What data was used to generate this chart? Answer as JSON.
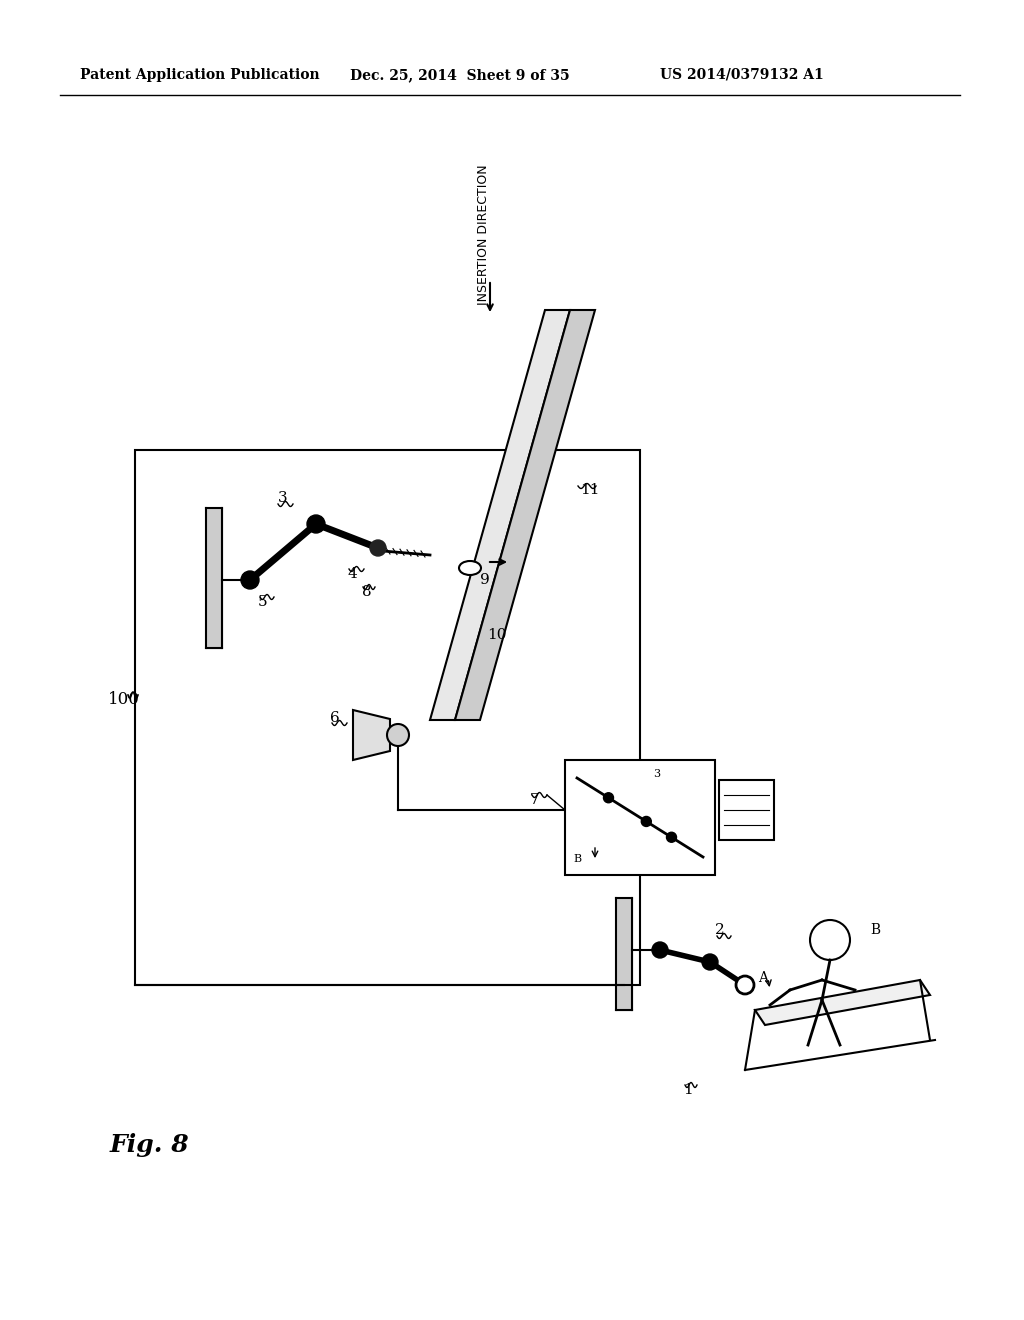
{
  "bg_color": "#ffffff",
  "header_left": "Patent Application Publication",
  "header_mid": "Dec. 25, 2014  Sheet 9 of 35",
  "header_right": "US 2014/0379132 A1",
  "fig_label": "Fig. 8",
  "system_label": "100",
  "insertion_direction_text": "INSERTION DIRECTION"
}
